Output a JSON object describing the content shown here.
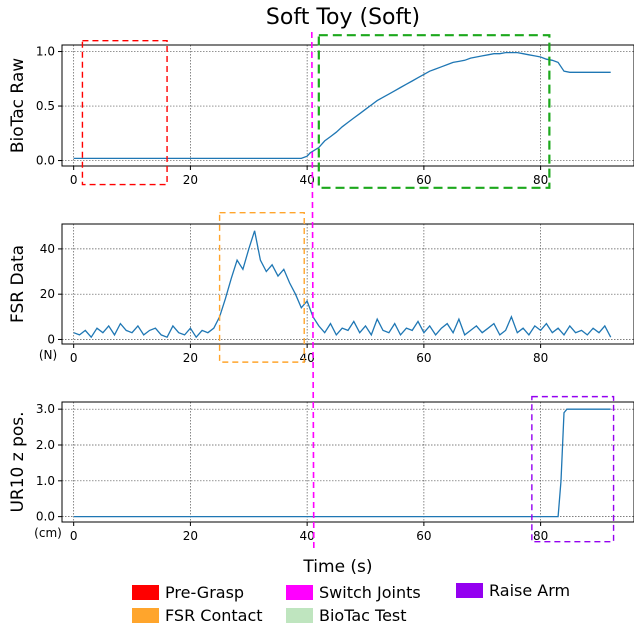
{
  "chart_data": {
    "type": "line",
    "title": "Soft Toy (Soft)",
    "xlabel": "Time (s)",
    "xlim": [
      -2,
      96
    ],
    "xticks": [
      0,
      20,
      40,
      60,
      80
    ],
    "grid": true,
    "legend_placement": "bottom",
    "legend": [
      {
        "label": "Pre-Grasp",
        "color": "#ff0000"
      },
      {
        "label": "FSR Contact",
        "color": "#ffa52c"
      },
      {
        "label": "Switch Joints",
        "color": "#ff00ff"
      },
      {
        "label": "BioTac Test",
        "color": "#bfe5bf"
      },
      {
        "label": "Raise Arm",
        "color": "#9400f0"
      }
    ],
    "subplots": [
      {
        "ylabel": "BioTac Raw",
        "yunit": "",
        "ylim": [
          -0.05,
          1.06
        ],
        "yticks": [
          0.0,
          0.5,
          1.0
        ],
        "yticklabels": [
          "0.0",
          "0.5",
          "1.0"
        ],
        "series": [
          {
            "x": [
              0,
              5,
              10,
              15,
              20,
              25,
              30,
              35,
              39,
              40,
              40.5,
              42,
              43,
              44,
              45,
              46,
              47,
              48,
              49,
              50,
              51,
              52,
              53,
              54,
              55,
              56,
              57,
              58,
              59,
              60,
              61,
              62,
              63,
              64,
              65,
              66,
              67,
              68,
              69,
              70,
              71,
              72,
              73,
              74,
              75,
              76,
              77,
              78,
              79,
              80,
              81,
              82,
              83,
              84,
              85,
              86,
              88,
              90,
              92
            ],
            "y": [
              0.02,
              0.02,
              0.02,
              0.02,
              0.02,
              0.02,
              0.02,
              0.02,
              0.02,
              0.04,
              0.07,
              0.12,
              0.18,
              0.22,
              0.26,
              0.31,
              0.35,
              0.39,
              0.43,
              0.47,
              0.51,
              0.55,
              0.58,
              0.61,
              0.64,
              0.67,
              0.7,
              0.73,
              0.76,
              0.79,
              0.82,
              0.84,
              0.86,
              0.88,
              0.9,
              0.91,
              0.92,
              0.94,
              0.95,
              0.96,
              0.97,
              0.98,
              0.98,
              0.99,
              0.99,
              0.99,
              0.98,
              0.97,
              0.96,
              0.95,
              0.93,
              0.92,
              0.9,
              0.82,
              0.81,
              0.81,
              0.81,
              0.81,
              0.81
            ]
          }
        ],
        "regions": [
          {
            "phase": "Pre-Grasp",
            "x": [
              1.5,
              16
            ],
            "y": [
              -0.22,
              1.1
            ]
          },
          {
            "phase": "BioTac Test",
            "x": [
              42,
              81.5
            ],
            "y": [
              -0.25,
              1.15
            ]
          }
        ]
      },
      {
        "ylabel": "FSR Data",
        "yunit": "(N)",
        "ylim": [
          -2,
          51
        ],
        "yticks": [
          0,
          20,
          40
        ],
        "yticklabels": [
          "0",
          "20",
          "40"
        ],
        "series": [
          {
            "x": [
              0,
              1,
              2,
              3,
              4,
              5,
              6,
              7,
              8,
              9,
              10,
              11,
              12,
              13,
              14,
              15,
              16,
              17,
              18,
              19,
              20,
              21,
              22,
              23,
              24,
              25,
              26,
              27,
              28,
              29,
              30,
              31,
              32,
              33,
              34,
              35,
              36,
              37,
              38,
              39,
              40,
              41,
              42,
              43,
              44,
              45,
              46,
              47,
              48,
              49,
              50,
              51,
              52,
              53,
              54,
              55,
              56,
              57,
              58,
              59,
              60,
              61,
              62,
              63,
              64,
              65,
              66,
              67,
              68,
              69,
              70,
              71,
              72,
              73,
              74,
              75,
              76,
              77,
              78,
              79,
              80,
              81,
              82,
              83,
              84,
              85,
              86,
              87,
              88,
              89,
              90,
              91,
              92
            ],
            "y": [
              3,
              2,
              4,
              1,
              5,
              3,
              6,
              2,
              7,
              4,
              3,
              6,
              2,
              4,
              5,
              2,
              1,
              6,
              3,
              2,
              5,
              1,
              4,
              3,
              5,
              10,
              18,
              27,
              35,
              31,
              40,
              48,
              35,
              30,
              33,
              28,
              31,
              25,
              20,
              14,
              17,
              10,
              6,
              3,
              7,
              2,
              5,
              4,
              8,
              3,
              6,
              2,
              9,
              4,
              3,
              7,
              2,
              5,
              4,
              8,
              3,
              6,
              2,
              5,
              7,
              3,
              9,
              2,
              4,
              6,
              3,
              5,
              7,
              2,
              4,
              10,
              3,
              5,
              2,
              6,
              4,
              7,
              3,
              5,
              2,
              6,
              3,
              4,
              2,
              5,
              3,
              6,
              1
            ]
          }
        ],
        "regions": [
          {
            "phase": "FSR Contact",
            "x": [
              25,
              39.5
            ],
            "y": [
              -10,
              56
            ]
          }
        ]
      },
      {
        "ylabel": "UR10 z pos.",
        "yunit": "(cm)",
        "ylim": [
          -0.15,
          3.2
        ],
        "yticks": [
          0.0,
          1.0,
          2.0,
          3.0
        ],
        "yticklabels": [
          "0.0",
          "1.0",
          "2.0",
          "3.0"
        ],
        "series": [
          {
            "x": [
              0,
              20,
              40,
              60,
              80,
              83,
              83.5,
              84,
              84.5,
              86,
              90,
              92
            ],
            "y": [
              0,
              0,
              0,
              0,
              0,
              0,
              1.0,
              2.9,
              3.0,
              3.0,
              3.0,
              3.0
            ]
          }
        ],
        "regions": [
          {
            "phase": "Raise Arm",
            "x": [
              78.5,
              92.5
            ],
            "y": [
              -0.7,
              3.35
            ]
          }
        ]
      }
    ],
    "switch_joints_x": 40.8
  }
}
